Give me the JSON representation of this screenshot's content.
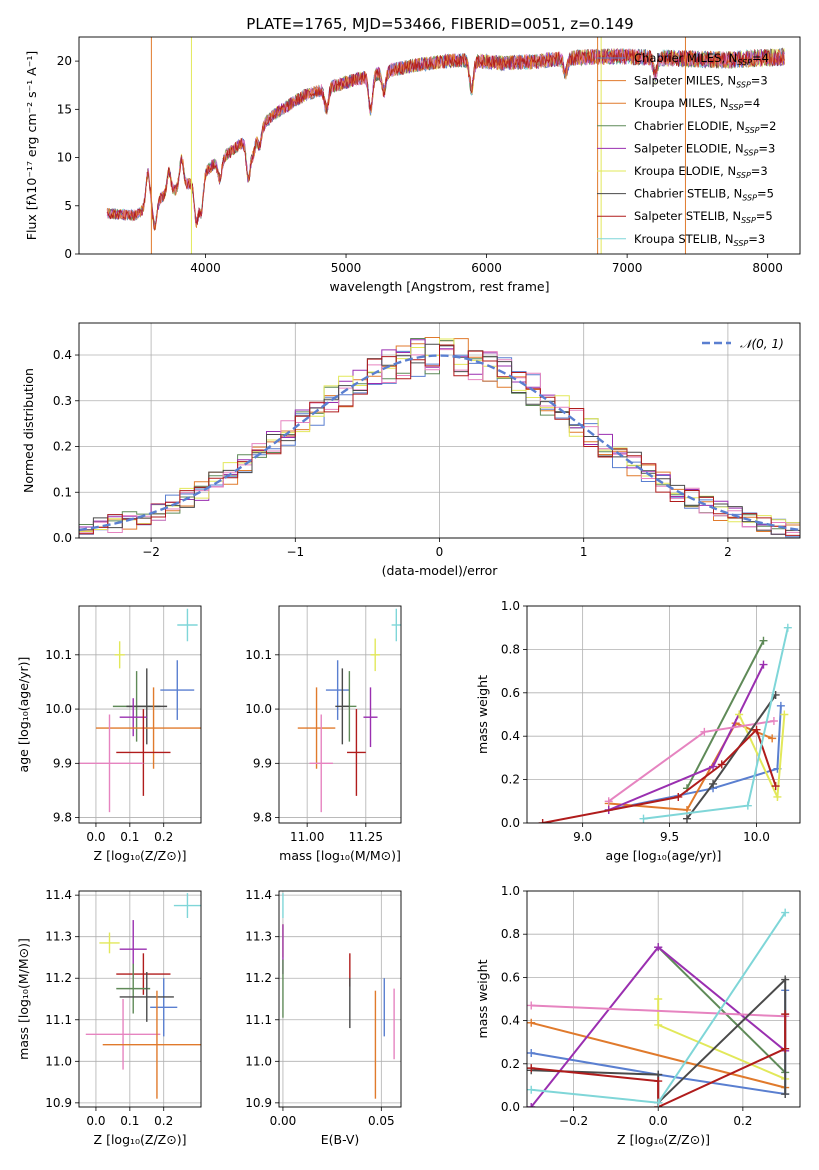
{
  "figure": {
    "title": "PLATE=1765, MJD=53466, FIBERID=0051, z=0.149"
  },
  "colors": {
    "c1": "#5a7fd0",
    "c2": "#e07a2c",
    "c3": "#5f8a58",
    "c4": "#9a2fb0",
    "c5": "#e2e85a",
    "c6": "#e684c0",
    "c7": "#4a4a4a",
    "c8": "#b01c1c",
    "c9": "#7fd6d8"
  },
  "chart_data": [
    {
      "id": "spectrum",
      "type": "line",
      "title": "PLATE=1765, MJD=53466, FIBERID=0051, z=0.149",
      "xlabel": "wavelength [Angstrom, rest frame]",
      "ylabel": "Flux [fλ10⁻¹⁷ erg cm⁻² s⁻¹ A⁻¹]",
      "xlim": [
        3100,
        8230
      ],
      "ylim": [
        0,
        22.5
      ],
      "xticks": [
        4000,
        5000,
        6000,
        7000,
        8000
      ],
      "yticks": [
        0,
        5,
        10,
        15,
        20
      ],
      "legend_position": "top-right",
      "legend": [
        {
          "label": "Chabrier MILES, N",
          "sub": "SSP",
          "eq": "=4",
          "color": "c1"
        },
        {
          "label": "Salpeter MILES, N",
          "sub": "SSP",
          "eq": "=3",
          "color": "c2"
        },
        {
          "label": "Kroupa MILES, N",
          "sub": "SSP",
          "eq": "=4",
          "color": "c2"
        },
        {
          "label": "Chabrier ELODIE, N",
          "sub": "SSP",
          "eq": "=2",
          "color": "c3"
        },
        {
          "label": "Salpeter ELODIE, N",
          "sub": "SSP",
          "eq": "=3",
          "color": "c4"
        },
        {
          "label": "Kroupa ELODIE, N",
          "sub": "SSP",
          "eq": "=3",
          "color": "c5"
        },
        {
          "label": "Chabrier STELIB, N",
          "sub": "SSP",
          "eq": "=5",
          "color": "c7"
        },
        {
          "label": "Salpeter STELIB, N",
          "sub": "SSP",
          "eq": "=5",
          "color": "c8"
        },
        {
          "label": "Kroupa STELIB, N",
          "sub": "SSP",
          "eq": "=3",
          "color": "c9"
        }
      ],
      "continuum": [
        [
          3300,
          4.2
        ],
        [
          3500,
          4.0
        ],
        [
          3700,
          6.0
        ],
        [
          3900,
          7.4
        ],
        [
          4100,
          9.8
        ],
        [
          4300,
          11.9
        ],
        [
          4500,
          14.6
        ],
        [
          4700,
          16.4
        ],
        [
          4900,
          17.4
        ],
        [
          5100,
          18.2
        ],
        [
          5300,
          19.0
        ],
        [
          5500,
          19.6
        ],
        [
          5700,
          20.0
        ],
        [
          5900,
          20.1
        ],
        [
          6100,
          19.8
        ],
        [
          6300,
          19.9
        ],
        [
          6500,
          20.2
        ],
        [
          6700,
          20.4
        ],
        [
          6900,
          20.5
        ],
        [
          7100,
          20.4
        ],
        [
          7300,
          20.3
        ],
        [
          7500,
          20.2
        ],
        [
          7700,
          20.1
        ],
        [
          7900,
          20.3
        ],
        [
          8100,
          20.4
        ]
      ],
      "absorption_lines": [
        [
          3590,
          3.5
        ],
        [
          3640,
          -2.5
        ],
        [
          3740,
          2.2
        ],
        [
          3830,
          3.0
        ],
        [
          3935,
          -4.5
        ],
        [
          3970,
          -3.8
        ],
        [
          4102,
          -2.0
        ],
        [
          4305,
          -4.2
        ],
        [
          4340,
          -2.0
        ],
        [
          4384,
          -1.8
        ],
        [
          4861,
          -2.2
        ],
        [
          5175,
          -3.6
        ],
        [
          5270,
          -2.0
        ],
        [
          5893,
          -3.0
        ],
        [
          6563,
          -1.5
        ],
        [
          7200,
          -1.8
        ]
      ],
      "dropouts": [
        {
          "x": 3615,
          "color": "c2"
        },
        {
          "x": 3900,
          "color": "c5"
        },
        {
          "x": 6790,
          "color": "c2"
        },
        {
          "x": 6815,
          "color": "c5"
        },
        {
          "x": 7415,
          "color": "c2"
        }
      ]
    },
    {
      "id": "residuals",
      "type": "histogram",
      "xlabel": "(data-model)/error",
      "ylabel": "Normed distribution",
      "xlim": [
        -2.5,
        2.5
      ],
      "ylim": [
        0,
        0.47
      ],
      "xticks": [
        -2,
        -1,
        0,
        1,
        2
      ],
      "yticks": [
        0.0,
        0.1,
        0.2,
        0.3,
        0.4
      ],
      "legend": [
        {
          "label": "𝒩(0, 1)",
          "color": "c1",
          "style": "dashed"
        }
      ]
    },
    {
      "id": "z_age",
      "type": "scatter",
      "xlabel": "Z [log₁₀(Z/Z⊙)]",
      "ylabel": "age  [log₁₀(age/yr)]",
      "xlim": [
        -0.05,
        0.31
      ],
      "ylim": [
        9.79,
        10.19
      ],
      "xticks": [
        0.0,
        0.1,
        0.2
      ],
      "yticks": [
        9.8,
        9.9,
        10.0,
        10.1
      ],
      "points": [
        {
          "x": 0.07,
          "y": 10.1,
          "ex": 0.015,
          "ey": 0.025,
          "color": "c5"
        },
        {
          "x": 0.27,
          "y": 10.155,
          "ex": 0.03,
          "ey": 0.03,
          "color": "c9"
        },
        {
          "x": 0.24,
          "y": 10.035,
          "ex": 0.05,
          "ey": 0.055,
          "color": "c1"
        },
        {
          "x": 0.12,
          "y": 10.005,
          "ex": 0.07,
          "ey": 0.065,
          "color": "c3"
        },
        {
          "x": 0.15,
          "y": 10.005,
          "ex": 0.06,
          "ey": 0.07,
          "color": "c7"
        },
        {
          "x": 0.11,
          "y": 9.985,
          "ex": 0.04,
          "ey": 0.035,
          "color": "c4"
        },
        {
          "x": 0.17,
          "y": 9.965,
          "ex": 0.17,
          "ey": 0.075,
          "color": "c2"
        },
        {
          "x": 0.14,
          "y": 9.92,
          "ex": 0.08,
          "ey": 0.08,
          "color": "c8"
        },
        {
          "x": 0.04,
          "y": 9.9,
          "ex": 0.1,
          "ey": 0.09,
          "color": "c6"
        }
      ]
    },
    {
      "id": "mass_age",
      "type": "scatter",
      "xlabel": "mass [log₁₀(M/M⊙)]",
      "ylabel": "",
      "xlim": [
        10.88,
        11.4
      ],
      "ylim": [
        9.79,
        10.19
      ],
      "xticks": [
        11.0,
        11.25
      ],
      "yticks": [
        9.8,
        9.9,
        10.0,
        10.1
      ],
      "points": [
        {
          "x": 11.29,
          "y": 10.1,
          "ex": 0.02,
          "ey": 0.03,
          "color": "c5"
        },
        {
          "x": 11.38,
          "y": 10.155,
          "ex": 0.02,
          "ey": 0.03,
          "color": "c9"
        },
        {
          "x": 11.13,
          "y": 10.035,
          "ex": 0.05,
          "ey": 0.055,
          "color": "c1"
        },
        {
          "x": 11.18,
          "y": 10.005,
          "ex": 0.03,
          "ey": 0.065,
          "color": "c3"
        },
        {
          "x": 11.15,
          "y": 10.005,
          "ex": 0.03,
          "ey": 0.07,
          "color": "c7"
        },
        {
          "x": 11.27,
          "y": 9.985,
          "ex": 0.03,
          "ey": 0.055,
          "color": "c4"
        },
        {
          "x": 11.04,
          "y": 9.965,
          "ex": 0.08,
          "ey": 0.075,
          "color": "c2"
        },
        {
          "x": 11.21,
          "y": 9.92,
          "ex": 0.04,
          "ey": 0.08,
          "color": "c8"
        },
        {
          "x": 11.06,
          "y": 9.9,
          "ex": 0.05,
          "ey": 0.09,
          "color": "c6"
        }
      ]
    },
    {
      "id": "age_weight",
      "type": "line",
      "xlabel": "age  [log₁₀(age/yr)]",
      "ylabel": "mass weight",
      "xlim": [
        8.68,
        10.25
      ],
      "ylim": [
        0,
        1
      ],
      "xticks": [
        9.0,
        9.5,
        10.0
      ],
      "yticks": [
        0.0,
        0.2,
        0.4,
        0.6,
        0.8,
        1.0
      ],
      "series": [
        {
          "color": "c1",
          "x": [
            9.15,
            9.75,
            10.12,
            10.14
          ],
          "y": [
            0.06,
            0.16,
            0.25,
            0.54
          ]
        },
        {
          "color": "c2",
          "x": [
            9.15,
            9.6,
            9.88,
            10.09
          ],
          "y": [
            0.09,
            0.06,
            0.46,
            0.39
          ]
        },
        {
          "color": "c3",
          "x": [
            9.6,
            10.04
          ],
          "y": [
            0.16,
            0.84
          ]
        },
        {
          "color": "c4",
          "x": [
            9.15,
            9.75,
            10.04
          ],
          "y": [
            0.06,
            0.26,
            0.73
          ]
        },
        {
          "color": "c5",
          "x": [
            9.9,
            10.12,
            10.16
          ],
          "y": [
            0.5,
            0.12,
            0.5
          ]
        },
        {
          "color": "c6",
          "x": [
            9.15,
            9.7,
            10.1
          ],
          "y": [
            0.1,
            0.42,
            0.47
          ]
        },
        {
          "color": "c7",
          "x": [
            9.6,
            9.75,
            10.11
          ],
          "y": [
            0.02,
            0.18,
            0.59
          ]
        },
        {
          "color": "c8",
          "x": [
            8.77,
            9.55,
            9.8,
            10.0,
            10.11
          ],
          "y": [
            0.0,
            0.12,
            0.27,
            0.43,
            0.17
          ]
        },
        {
          "color": "c9",
          "x": [
            9.35,
            9.95,
            10.18
          ],
          "y": [
            0.02,
            0.08,
            0.9
          ]
        }
      ]
    },
    {
      "id": "z_mass",
      "type": "scatter",
      "xlabel": "Z [log₁₀(Z/Z⊙)]",
      "ylabel": "mass [log₁₀(M/M⊙)]",
      "xlim": [
        -0.05,
        0.31
      ],
      "ylim": [
        10.89,
        11.41
      ],
      "xticks": [
        0.0,
        0.1,
        0.2
      ],
      "yticks": [
        10.9,
        11.0,
        11.1,
        11.2,
        11.3,
        11.4
      ],
      "points": [
        {
          "x": 0.04,
          "y": 11.285,
          "ex": 0.03,
          "ey": 0.025,
          "color": "c5"
        },
        {
          "x": 0.27,
          "y": 11.375,
          "ex": 0.04,
          "ey": 0.03,
          "color": "c9"
        },
        {
          "x": 0.11,
          "y": 11.27,
          "ex": 0.04,
          "ey": 0.07,
          "color": "c4"
        },
        {
          "x": 0.2,
          "y": 11.13,
          "ex": 0.04,
          "ey": 0.07,
          "color": "c1"
        },
        {
          "x": 0.14,
          "y": 11.21,
          "ex": 0.08,
          "ey": 0.05,
          "color": "c8"
        },
        {
          "x": 0.11,
          "y": 11.175,
          "ex": 0.05,
          "ey": 0.06,
          "color": "c3"
        },
        {
          "x": 0.15,
          "y": 11.155,
          "ex": 0.08,
          "ey": 0.06,
          "color": "c7"
        },
        {
          "x": 0.08,
          "y": 11.065,
          "ex": 0.11,
          "ey": 0.085,
          "color": "c6"
        },
        {
          "x": 0.18,
          "y": 11.04,
          "ex": 0.16,
          "ey": 0.13,
          "color": "c2"
        }
      ]
    },
    {
      "id": "ebv_mass",
      "type": "scatter",
      "xlabel": "E(B-V)",
      "ylabel": "",
      "xlim": [
        -0.002,
        0.06
      ],
      "ylim": [
        10.89,
        11.41
      ],
      "xticks": [
        0.0,
        0.05
      ],
      "yticks": [
        10.9,
        11.0,
        11.1,
        11.2,
        11.3,
        11.4
      ],
      "points": [
        {
          "x": 0.0,
          "y": 11.375,
          "ex": 0,
          "ey": 0.03,
          "color": "c9"
        },
        {
          "x": 0.0,
          "y": 11.29,
          "ex": 0,
          "ey": 0.04,
          "color": "c5"
        },
        {
          "x": 0.0,
          "y": 11.27,
          "ex": 0,
          "ey": 0.06,
          "color": "c4"
        },
        {
          "x": 0.0,
          "y": 11.175,
          "ex": 0,
          "ey": 0.07,
          "color": "c3"
        },
        {
          "x": 0.034,
          "y": 11.22,
          "ex": 0,
          "ey": 0.04,
          "color": "c8"
        },
        {
          "x": 0.034,
          "y": 11.14,
          "ex": 0,
          "ey": 0.06,
          "color": "c7"
        },
        {
          "x": 0.0515,
          "y": 11.13,
          "ex": 0,
          "ey": 0.07,
          "color": "c1"
        },
        {
          "x": 0.047,
          "y": 11.04,
          "ex": 0,
          "ey": 0.13,
          "color": "c2"
        },
        {
          "x": 0.0565,
          "y": 11.09,
          "ex": 0,
          "ey": 0.085,
          "color": "c6"
        }
      ]
    },
    {
      "id": "z_weight",
      "type": "line",
      "xlabel": "Z [log₁₀(Z/Z⊙)]",
      "ylabel": "mass weight",
      "xlim": [
        -0.31,
        0.335
      ],
      "ylim": [
        0,
        1
      ],
      "xticks": [
        -0.2,
        0.0,
        0.2
      ],
      "yticks": [
        0.0,
        0.2,
        0.4,
        0.6,
        0.8,
        1.0
      ],
      "series": [
        {
          "color": "c1",
          "x": [
            -0.3,
            0.0,
            0.3,
            0.3
          ],
          "y": [
            0.25,
            0.15,
            0.06,
            0.54
          ]
        },
        {
          "color": "c2",
          "x": [
            -0.3,
            0.3
          ],
          "y": [
            0.39,
            0.09
          ]
        },
        {
          "color": "c3",
          "x": [
            0.0,
            0.3
          ],
          "y": [
            0.74,
            0.16
          ]
        },
        {
          "color": "c4",
          "x": [
            -0.3,
            0.0,
            0.3
          ],
          "y": [
            0.0,
            0.74,
            0.26
          ]
        },
        {
          "color": "c5",
          "x": [
            0.0,
            0.0,
            0.3
          ],
          "y": [
            0.5,
            0.38,
            0.13
          ]
        },
        {
          "color": "c6",
          "x": [
            -0.3,
            0.3
          ],
          "y": [
            0.47,
            0.42
          ]
        },
        {
          "color": "c7",
          "x": [
            -0.3,
            0.0,
            0.0,
            0.3,
            0.3
          ],
          "y": [
            0.17,
            0.15,
            0.02,
            0.59,
            0.06
          ]
        },
        {
          "color": "c8",
          "x": [
            -0.3,
            0.0,
            0.0,
            0.3,
            0.3
          ],
          "y": [
            0.18,
            0.12,
            0.0,
            0.27,
            0.43
          ]
        },
        {
          "color": "c9",
          "x": [
            -0.3,
            0.0,
            0.3
          ],
          "y": [
            0.08,
            0.02,
            0.9
          ]
        }
      ]
    }
  ]
}
